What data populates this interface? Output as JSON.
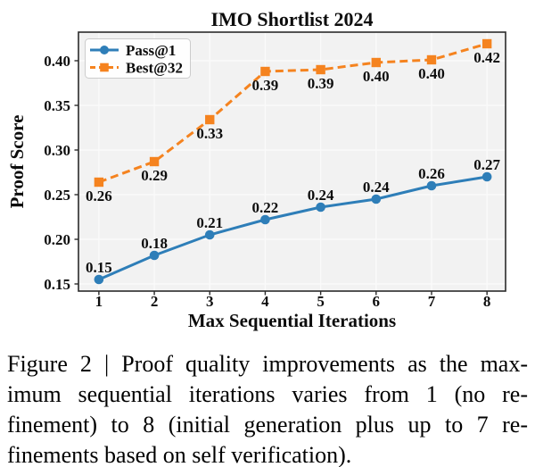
{
  "caption": {
    "lines": [
      "Figure 2 | Proof quality improvements as the max-",
      "imum sequential iterations varies from 1 (no re-",
      "finement) to 8 (initial generation plus up to 7 re-",
      "finements based on self verification)."
    ]
  },
  "chart_data": {
    "type": "line",
    "title": "IMO Shortlist 2024",
    "xlabel": "Max Sequential Iterations",
    "ylabel": "Proof Score",
    "x": [
      1,
      2,
      3,
      4,
      5,
      6,
      7,
      8
    ],
    "xtick_labels": [
      "1",
      "2",
      "3",
      "4",
      "5",
      "6",
      "7",
      "8"
    ],
    "ytick_values": [
      0.15,
      0.2,
      0.25,
      0.3,
      0.35,
      0.4
    ],
    "ytick_labels": [
      "0.15",
      "0.20",
      "0.25",
      "0.30",
      "0.35",
      "0.40"
    ],
    "xlim": [
      0.632,
      8.335
    ],
    "ylim": [
      0.142,
      0.432
    ],
    "grid": true,
    "legend_position": "upper left",
    "colors": {
      "plot_bg": "#f2f2f2",
      "grid": "#fafafa",
      "spine": "#2b2b2b",
      "pass1": "#2e7eb8",
      "best32": "#f5831f",
      "legend_bg": "#ffffff",
      "legend_border": "#cccccc"
    },
    "series": [
      {
        "name": "Pass@1",
        "color": "#2e7eb8",
        "marker": "circle",
        "line_style": "solid",
        "values": [
          0.15,
          0.18,
          0.21,
          0.22,
          0.24,
          0.24,
          0.26,
          0.27
        ],
        "values_precise": [
          0.155,
          0.182,
          0.205,
          0.222,
          0.236,
          0.245,
          0.26,
          0.27
        ],
        "labels": [
          "0.15",
          "0.18",
          "0.21",
          "0.22",
          "0.24",
          "0.24",
          "0.26",
          "0.27"
        ],
        "label_position": "above"
      },
      {
        "name": "Best@32",
        "color": "#f5831f",
        "marker": "square",
        "line_style": "dashed",
        "values": [
          0.26,
          0.29,
          0.33,
          0.39,
          0.39,
          0.4,
          0.4,
          0.42
        ],
        "values_precise": [
          0.264,
          0.287,
          0.334,
          0.388,
          0.39,
          0.398,
          0.401,
          0.419
        ],
        "labels": [
          "0.26",
          "0.29",
          "0.33",
          "0.39",
          "0.39",
          "0.40",
          "0.40",
          "0.42"
        ],
        "label_position": "below"
      }
    ]
  }
}
